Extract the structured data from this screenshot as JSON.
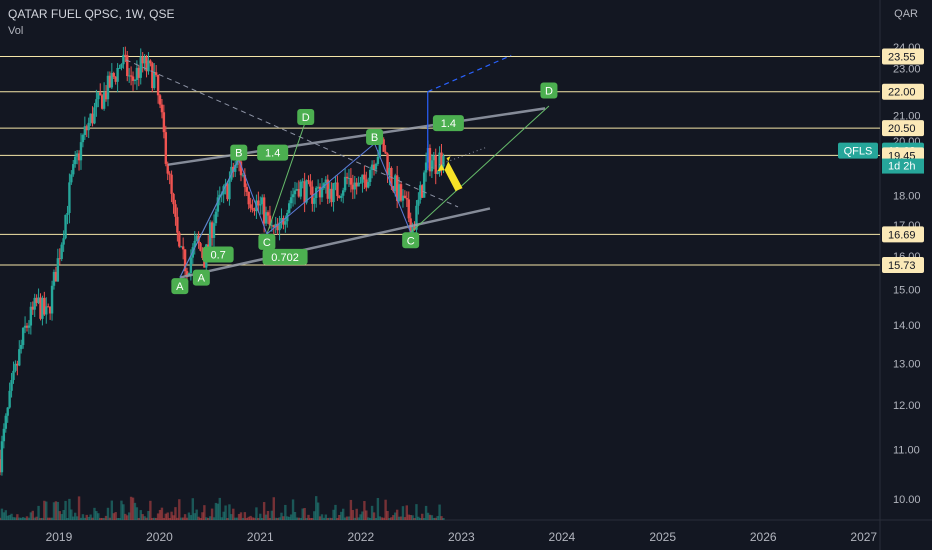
{
  "header": {
    "symbol_line": "QATAR FUEL QPSC, 1W, QSE",
    "indicator": "Vol",
    "currency": "QAR"
  },
  "colors": {
    "background": "#131722",
    "up": "#26a69a",
    "down": "#ef5350",
    "level_line": "#f5e6a8",
    "level_label_bg": "#fbe9b7",
    "pattern_label_bg": "#4caf50",
    "projection": "#2962ff",
    "channel": "#9aa0ad",
    "arrow": "#f7e227",
    "qfls_badge": "#26a69a"
  },
  "chart_data": {
    "type": "candlestick",
    "title": "QATAR FUEL QPSC, 1W, QSE",
    "ylabel": "QAR",
    "scale": "log",
    "ylim": [
      9.6,
      24.6
    ],
    "xlim": [
      "2018-06-01",
      "2027-03-01"
    ],
    "grid": false,
    "y_ticks": [
      "10.00",
      "11.00",
      "12.00",
      "13.00",
      "14.00",
      "15.00",
      "16.00",
      "17.00",
      "18.00",
      "19.00",
      "20.00",
      "21.00",
      "22.00",
      "23.00",
      "24.00"
    ],
    "x_ticks": [
      "2019",
      "2020",
      "2021",
      "2022",
      "2023",
      "2024",
      "2025",
      "2026",
      "2027"
    ],
    "price_anchors": [
      [
        "2018-06-01",
        10.8
      ],
      [
        "2018-07-15",
        12.4
      ],
      [
        "2018-09-01",
        13.9
      ],
      [
        "2018-10-15",
        14.6
      ],
      [
        "2018-11-20",
        14.2
      ],
      [
        "2019-01-01",
        16.0
      ],
      [
        "2019-02-15",
        18.5
      ],
      [
        "2019-04-01",
        20.2
      ],
      [
        "2019-05-15",
        21.3
      ],
      [
        "2019-07-01",
        22.2
      ],
      [
        "2019-08-20",
        23.4
      ],
      [
        "2019-09-20",
        22.4
      ],
      [
        "2019-11-01",
        23.2
      ],
      [
        "2019-12-15",
        22.6
      ],
      [
        "2020-01-15",
        20.3
      ],
      [
        "2020-02-15",
        17.8
      ],
      [
        "2020-03-15",
        16.0
      ],
      [
        "2020-04-10",
        15.7
      ],
      [
        "2020-05-15",
        16.4
      ],
      [
        "2020-06-15",
        15.9
      ],
      [
        "2020-07-20",
        17.4
      ],
      [
        "2020-09-01",
        18.2
      ],
      [
        "2020-10-10",
        19.3
      ],
      [
        "2020-11-20",
        18.0
      ],
      [
        "2021-01-10",
        17.5
      ],
      [
        "2021-02-10",
        16.8
      ],
      [
        "2021-03-10",
        16.7
      ],
      [
        "2021-04-10",
        17.8
      ],
      [
        "2021-05-20",
        18.4
      ],
      [
        "2021-07-01",
        18.0
      ],
      [
        "2021-08-15",
        18.3
      ],
      [
        "2021-10-01",
        18.1
      ],
      [
        "2021-11-15",
        18.6
      ],
      [
        "2022-01-01",
        18.2
      ],
      [
        "2022-02-15",
        19.3
      ],
      [
        "2022-03-20",
        19.9
      ],
      [
        "2022-04-20",
        18.6
      ],
      [
        "2022-05-20",
        18.0
      ],
      [
        "2022-06-20",
        17.4
      ],
      [
        "2022-07-10",
        16.9
      ],
      [
        "2022-08-10",
        18.2
      ],
      [
        "2022-09-01",
        19.3
      ],
      [
        "2022-10-01",
        19.2
      ],
      [
        "2022-10-31",
        19.63
      ]
    ],
    "horizontal_levels": [
      23.55,
      22.0,
      20.5,
      19.45,
      16.69,
      15.73
    ],
    "last_price": {
      "symbol": "QFLS",
      "price": "19.63",
      "countdown": "1d 2h"
    },
    "axis_badges": [
      {
        "value": 23.55,
        "label": "23.55",
        "kind": "level"
      },
      {
        "value": 22.0,
        "label": "22.00",
        "kind": "level"
      },
      {
        "value": 20.5,
        "label": "20.50",
        "kind": "level"
      },
      {
        "value": 19.63,
        "label": "19.63",
        "kind": "price"
      },
      {
        "value": 19.45,
        "label": "19.45",
        "kind": "level"
      },
      {
        "value": 16.69,
        "label": "16.69",
        "kind": "level"
      },
      {
        "value": 15.73,
        "label": "15.73",
        "kind": "level"
      }
    ],
    "lines": [
      {
        "name": "upper-channel",
        "from": [
          "2020-02-01",
          19.1
        ],
        "to": [
          "2023-11-01",
          21.3
        ],
        "style": "channel"
      },
      {
        "name": "lower-channel",
        "from": [
          "2020-03-15",
          15.35
        ],
        "to": [
          "2023-04-15",
          17.55
        ],
        "style": "channel"
      },
      {
        "name": "downtrend-dashed",
        "from": [
          "2019-09-01",
          23.4
        ],
        "to": [
          "2022-12-20",
          17.6
        ],
        "style": "dashed"
      },
      {
        "name": "leg-a-c",
        "from": [
          "2020-03-15",
          15.35
        ],
        "to": [
          "2020-10-15",
          19.3
        ],
        "style": "green"
      },
      {
        "name": "leg-c-d",
        "from": [
          "2021-01-25",
          16.7
        ],
        "to": [
          "2021-06-15",
          20.8
        ],
        "style": "green"
      },
      {
        "name": "leg-c-d2",
        "from": [
          "2022-07-01",
          16.75
        ],
        "to": [
          "2023-11-15",
          21.4
        ],
        "style": "green"
      },
      {
        "name": "leg-a-b1",
        "from": [
          "2020-03-15",
          15.35
        ],
        "to": [
          "2020-10-15",
          19.3
        ],
        "style": "blue"
      },
      {
        "name": "leg-b-c1",
        "from": [
          "2020-10-15",
          19.3
        ],
        "to": [
          "2021-01-25",
          16.7
        ],
        "style": "blue"
      },
      {
        "name": "leg-c-b2",
        "from": [
          "2021-01-25",
          16.7
        ],
        "to": [
          "2022-02-20",
          19.9
        ],
        "style": "blue"
      },
      {
        "name": "leg-b-c2",
        "from": [
          "2022-02-20",
          19.9
        ],
        "to": [
          "2022-07-01",
          16.75
        ],
        "style": "blue"
      },
      {
        "name": "projection-up",
        "from": [
          "2022-09-01",
          18.9
        ],
        "to": [
          "2022-09-01",
          22.0
        ],
        "style": "projection"
      },
      {
        "name": "projection-dashed",
        "from": [
          "2022-09-01",
          22.0
        ],
        "to": [
          "2023-07-01",
          23.6
        ],
        "style": "projection-dashed"
      },
      {
        "name": "dotted-target",
        "from": [
          "2022-09-15",
          19.0
        ],
        "to": [
          "2023-04-01",
          19.75
        ],
        "style": "dotted"
      }
    ],
    "annotations": [
      {
        "text": "A",
        "x": "2020-03-15",
        "y": 15.1
      },
      {
        "text": "A",
        "x": "2020-06-01",
        "y": 15.35
      },
      {
        "text": "B",
        "x": "2020-10-15",
        "y": 19.55
      },
      {
        "text": "C",
        "x": "2021-01-25",
        "y": 16.45
      },
      {
        "text": "D",
        "x": "2021-06-15",
        "y": 20.95
      },
      {
        "text": "B",
        "x": "2022-02-20",
        "y": 20.15
      },
      {
        "text": "C",
        "x": "2022-07-01",
        "y": 16.5
      },
      {
        "text": "D",
        "x": "2023-11-15",
        "y": 22.05
      },
      {
        "text": "1.4",
        "x": "2021-02-15",
        "y": 19.55
      },
      {
        "text": "1.4",
        "x": "2022-11-15",
        "y": 20.7
      },
      {
        "text": "0.7",
        "x": "2020-08-01",
        "y": 16.05
      },
      {
        "text": "0.702",
        "x": "2021-04-01",
        "y": 15.98
      }
    ]
  }
}
